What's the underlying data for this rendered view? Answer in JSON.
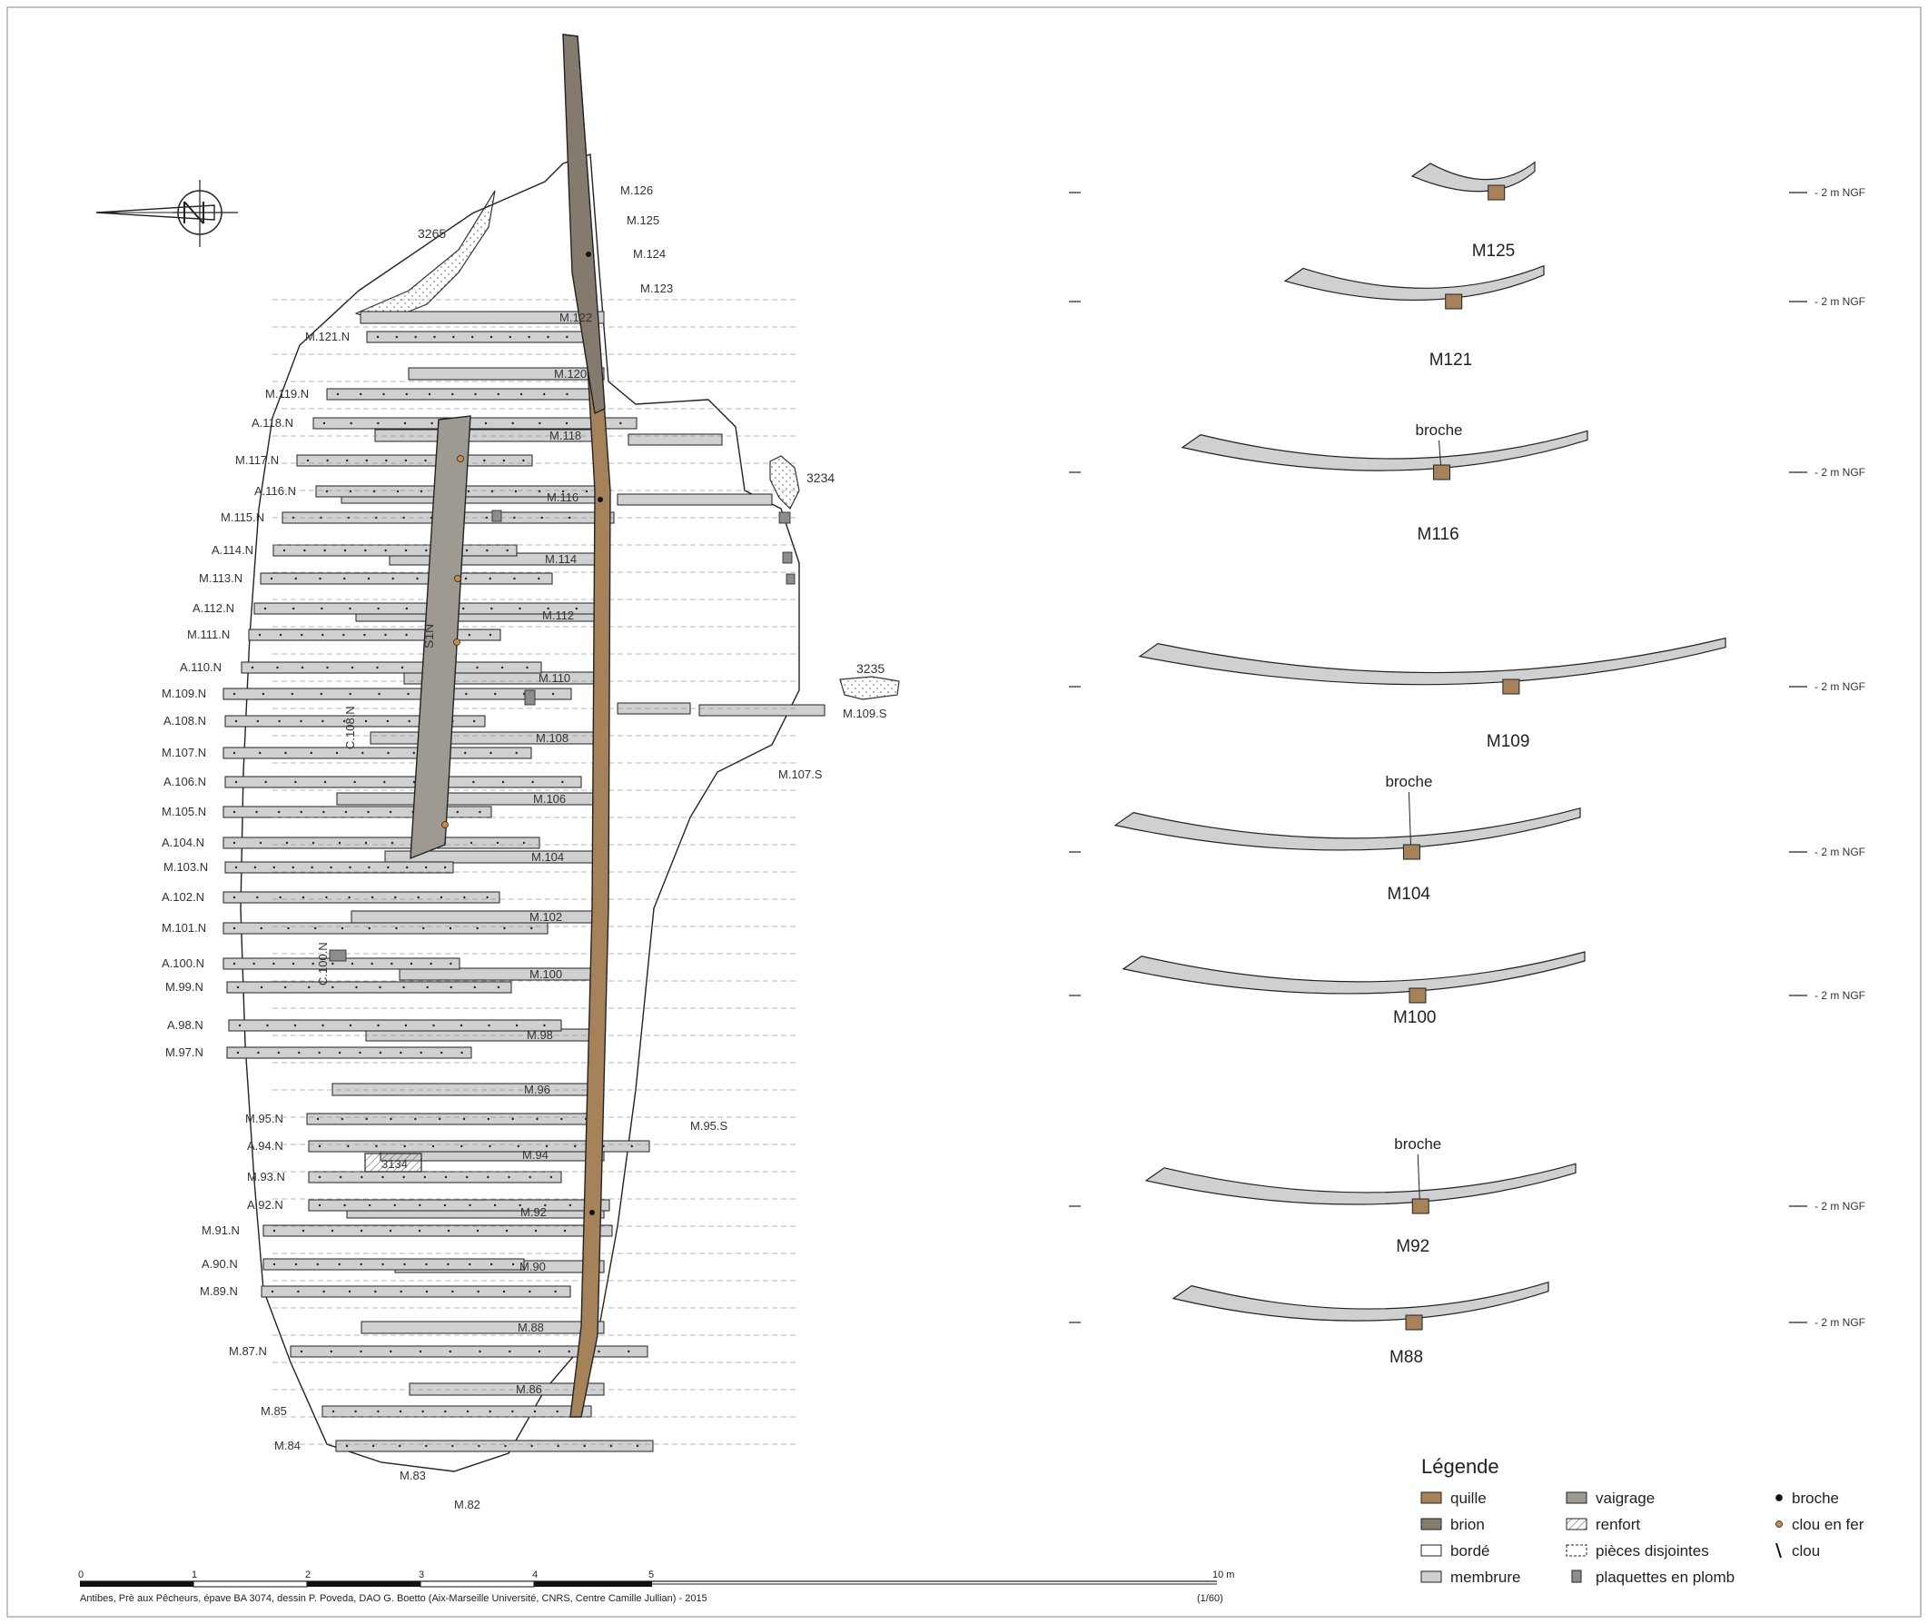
{
  "plan": {
    "north_frames": [
      "M.121.N",
      "M.119.N",
      "A.118.N",
      "M.117.N",
      "A.116.N",
      "M.115.N",
      "A.114.N",
      "M.113.N",
      "A.112.N",
      "M.111.N",
      "A.110.N",
      "M.109.N",
      "A.108.N",
      "M.107.N",
      "A.106.N",
      "M.105.N",
      "A.104.N",
      "M.103.N",
      "A.102.N",
      "M.101.N",
      "A.100.N",
      "M.99.N",
      "A.98.N",
      "M.97.N",
      "M.95.N",
      "A.94.N",
      "M.93.N",
      "A.92.N",
      "M.91.N",
      "A.90.N",
      "M.89.N",
      "M.87.N",
      "M.85",
      "M.84"
    ],
    "keel_frames": [
      "M.126",
      "M.125",
      "M.124",
      "M.123",
      "M.122",
      "M.120",
      "M.118",
      "M.116",
      "M.114",
      "M.112",
      "M.110",
      "M.108",
      "M.106",
      "M.104",
      "M.102",
      "M.100",
      "M.98",
      "M.96",
      "M.94",
      "M.92",
      "M.90",
      "M.88",
      "M.86",
      "M.83",
      "M.82"
    ],
    "south_frames": [
      "M.109.S",
      "M.107.S",
      "M.95.S"
    ],
    "features": [
      "3265",
      "3234",
      "3235",
      "3134"
    ],
    "stringer": "S1N",
    "other_pieces": [
      "C.108.N",
      "C.100.N"
    ]
  },
  "sections": [
    {
      "title": "M125",
      "ngf": "- 2 m NGF"
    },
    {
      "title": "M121",
      "ngf": "- 2 m NGF"
    },
    {
      "title": "M116",
      "ngf": "- 2 m NGF",
      "note": "broche"
    },
    {
      "title": "M109",
      "ngf": "- 2 m NGF"
    },
    {
      "title": "M104",
      "ngf": "- 2 m NGF",
      "note": "broche"
    },
    {
      "title": "M100",
      "ngf": "- 2 m NGF"
    },
    {
      "title": "M92",
      "ngf": "- 2 m NGF",
      "note": "broche"
    },
    {
      "title": "M88",
      "ngf": "- 2 m NGF"
    }
  ],
  "legend": {
    "title": "Légende",
    "items": [
      {
        "label": "quille",
        "color": "#a5825a",
        "style": "fill"
      },
      {
        "label": "brion",
        "color": "#857a6e",
        "style": "fill"
      },
      {
        "label": "bordé",
        "color": "#ffffff",
        "style": "fill"
      },
      {
        "label": "membrure",
        "color": "#cfd0d2",
        "style": "fill"
      },
      {
        "label": "vaigrage",
        "color": "#9e9a91",
        "style": "fill"
      },
      {
        "label": "renfort",
        "color": "#ffffff",
        "style": "hatch"
      },
      {
        "label": "pièces disjointes",
        "color": "#ffffff",
        "style": "dashed"
      },
      {
        "label": "plaquettes en plomb",
        "color": "#8c8d91",
        "style": "small"
      },
      {
        "label": "broche",
        "color": "#111111",
        "style": "dot"
      },
      {
        "label": "clou en fer",
        "color": "#c98a4a",
        "style": "dot"
      },
      {
        "label": "clou",
        "color": "#111111",
        "style": "line"
      }
    ]
  },
  "scale": {
    "ticks": [
      "0",
      "1",
      "2",
      "3",
      "4",
      "5",
      "10 m"
    ],
    "ratio": "(1/60)"
  },
  "caption": "Antibes, Prè aux Pêcheurs, épave BA 3074, dessin P. Poveda, DAO G. Boetto (Aix-Marseille Université, CNRS, Centre Camille Jullian) - 2015",
  "colors": {
    "keel": "#a5825a",
    "brion": "#857a6e",
    "frame": "#cfd0d2",
    "ceiling": "#9e9a91",
    "lead": "#8c8d91",
    "iron_nail": "#c98a4a"
  }
}
